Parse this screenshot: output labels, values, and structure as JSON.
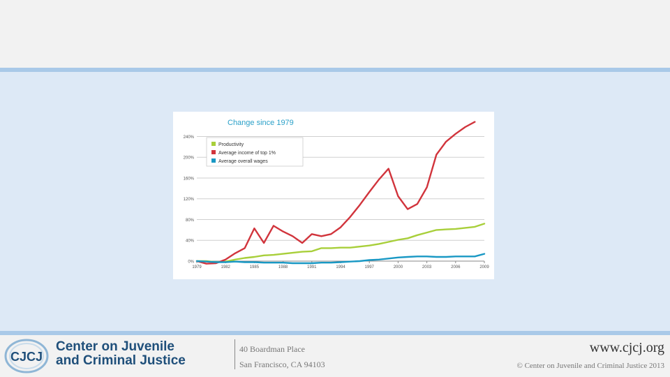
{
  "chart_data": {
    "type": "line",
    "title": "Change since 1979",
    "xlabel": "",
    "ylabel": "",
    "ylim": [
      0,
      250
    ],
    "y_ticks": [
      "0%",
      "40%",
      "80%",
      "120%",
      "160%",
      "200%",
      "240%"
    ],
    "y_tick_values": [
      0,
      40,
      80,
      120,
      160,
      200,
      240
    ],
    "x_ticks": [
      "1979",
      "1982",
      "1985",
      "1988",
      "1991",
      "1994",
      "1997",
      "2000",
      "2003",
      "2006",
      "2009"
    ],
    "x_tick_values": [
      1979,
      1982,
      1985,
      1988,
      1991,
      1994,
      1997,
      2000,
      2003,
      2006,
      2009
    ],
    "legend_position": "top-left",
    "series": [
      {
        "name": "Productivity",
        "color": "#a8cf3a",
        "x": [
          1979,
          1980,
          1981,
          1982,
          1983,
          1984,
          1985,
          1986,
          1987,
          1988,
          1989,
          1990,
          1991,
          1992,
          1993,
          1994,
          1995,
          1996,
          1997,
          1998,
          1999,
          2000,
          2001,
          2002,
          2003,
          2004,
          2005,
          2006,
          2007,
          2008,
          2009
        ],
        "values": [
          0,
          0,
          -2,
          -1,
          3,
          6,
          8,
          11,
          12,
          14,
          16,
          18,
          19,
          25,
          25,
          26,
          26,
          28,
          30,
          33,
          37,
          41,
          44,
          50,
          55,
          60,
          61,
          62,
          64,
          66,
          72
        ]
      },
      {
        "name": "Average income of top 1%",
        "color": "#d1343c",
        "x": [
          1979,
          1980,
          1981,
          1982,
          1983,
          1984,
          1985,
          1986,
          1987,
          1988,
          1989,
          1990,
          1991,
          1992,
          1993,
          1994,
          1995,
          1996,
          1997,
          1998,
          1999,
          2000,
          2001,
          2002,
          2003,
          2004,
          2005,
          2006,
          2007,
          2008
        ],
        "values": [
          0,
          -5,
          -4,
          3,
          15,
          25,
          63,
          35,
          68,
          57,
          48,
          35,
          52,
          48,
          52,
          65,
          85,
          108,
          133,
          157,
          178,
          125,
          100,
          110,
          142,
          205,
          230,
          245,
          258,
          268
        ]
      },
      {
        "name": "Average overall wages",
        "color": "#1998c4",
        "x": [
          1979,
          1980,
          1981,
          1982,
          1983,
          1984,
          1985,
          1986,
          1987,
          1988,
          1989,
          1990,
          1991,
          1992,
          1993,
          1994,
          1995,
          1996,
          1997,
          1998,
          1999,
          2000,
          2001,
          2002,
          2003,
          2004,
          2005,
          2006,
          2007,
          2008,
          2009
        ],
        "values": [
          0,
          -1,
          -2,
          -2,
          -1,
          -2,
          -2,
          -3,
          -3,
          -3,
          -4,
          -4,
          -4,
          -3,
          -3,
          -2,
          -1,
          0,
          2,
          3,
          5,
          7,
          8,
          9,
          9,
          8,
          8,
          9,
          9,
          9,
          14
        ]
      }
    ]
  },
  "footer": {
    "org_line1": "Center on Juvenile",
    "org_line2": "and Criminal Justice",
    "logo_initials": "CJCJ",
    "address_line1": "40 Boardman Place",
    "address_line2": "San Francisco, CA 94103",
    "url": "www.cjcj.org",
    "copyright": "© Center on Juvenile and Criminal Justice 2013"
  }
}
